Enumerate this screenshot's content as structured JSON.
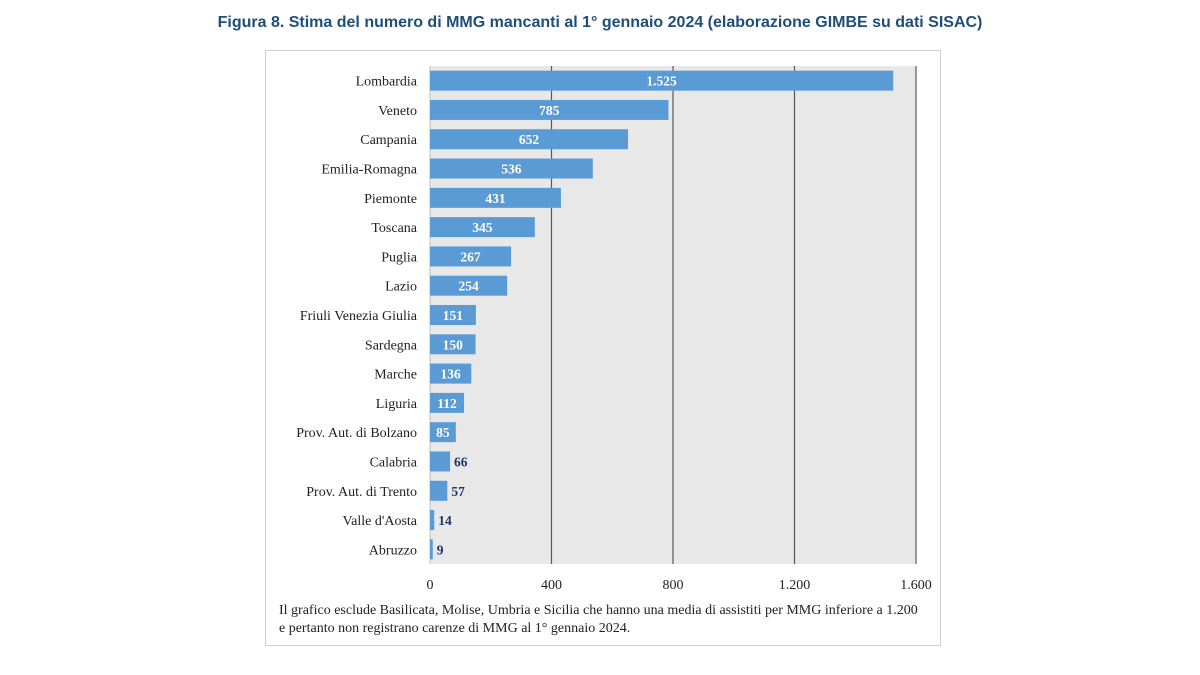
{
  "title": "Figura 8. Stima del numero di MMG mancanti al 1° gennaio 2024 (elaborazione GIMBE su dati SISAC)",
  "note": "Il grafico esclude Basilicata, Molise, Umbria e Sicilia che hanno una media di assistiti per MMG inferiore a 1.200 e pertanto non registrano carenze di MMG al 1° gennaio 2024.",
  "colors": {
    "bar": "#5b9bd5",
    "plot_bg": "#e8e8e8",
    "grid": "#595959",
    "label_inside": "#ffffff",
    "label_outside": "#1f3864"
  },
  "chart_data": {
    "type": "bar",
    "orientation": "horizontal",
    "title": "Figura 8. Stima del numero di MMG mancanti al 1° gennaio 2024 (elaborazione GIMBE su dati SISAC)",
    "xlabel": "",
    "ylabel": "",
    "xlim": [
      0,
      1600
    ],
    "xticks": [
      0,
      400,
      800,
      1200,
      1600
    ],
    "xtick_labels": [
      "0",
      "400",
      "800",
      "1.200",
      "1.600"
    ],
    "grid": true,
    "categories": [
      "Lombardia",
      "Veneto",
      "Campania",
      "Emilia-Romagna",
      "Piemonte",
      "Toscana",
      "Puglia",
      "Lazio",
      "Friuli Venezia Giulia",
      "Sardegna",
      "Marche",
      "Liguria",
      "Prov. Aut. di Bolzano",
      "Calabria",
      "Prov. Aut. di Trento",
      "Valle d'Aosta",
      "Abruzzo"
    ],
    "values": [
      1525,
      785,
      652,
      536,
      431,
      345,
      267,
      254,
      151,
      150,
      136,
      112,
      85,
      66,
      57,
      14,
      9
    ],
    "value_labels": [
      "1.525",
      "785",
      "652",
      "536",
      "431",
      "345",
      "267",
      "254",
      "151",
      "150",
      "136",
      "112",
      "85",
      "66",
      "57",
      "14",
      "9"
    ]
  }
}
